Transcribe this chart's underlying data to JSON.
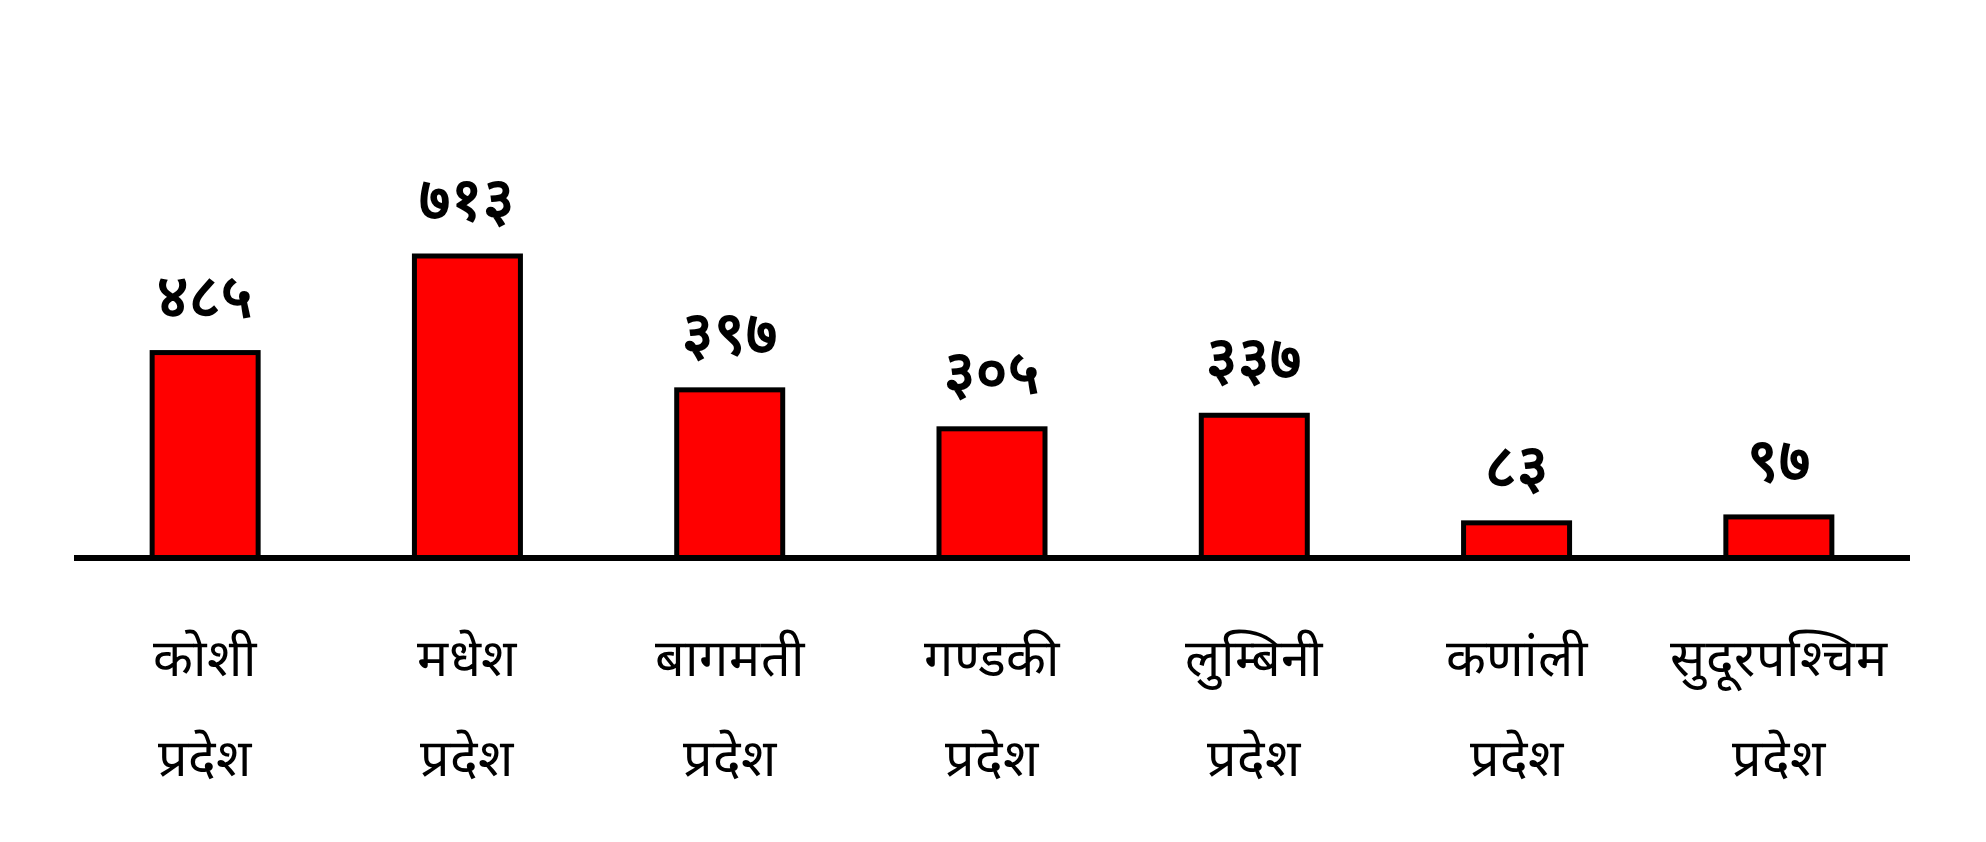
{
  "chart_data": {
    "type": "bar",
    "categories": [
      "कोशी प्रदेश",
      "मधेश प्रदेश",
      "बागमती प्रदेश",
      "गण्डकी प्रदेश",
      "लुम्बिनी प्रदेश",
      "कणांली प्रदेश",
      "सुदूरपश्चिम प्रदेश"
    ],
    "values": [
      485,
      713,
      397,
      305,
      337,
      83,
      97
    ],
    "value_labels": [
      "४८५",
      "७१३",
      "३९७",
      "३०५",
      "३३७",
      "८३",
      "९७"
    ],
    "color": "#ff0000"
  }
}
